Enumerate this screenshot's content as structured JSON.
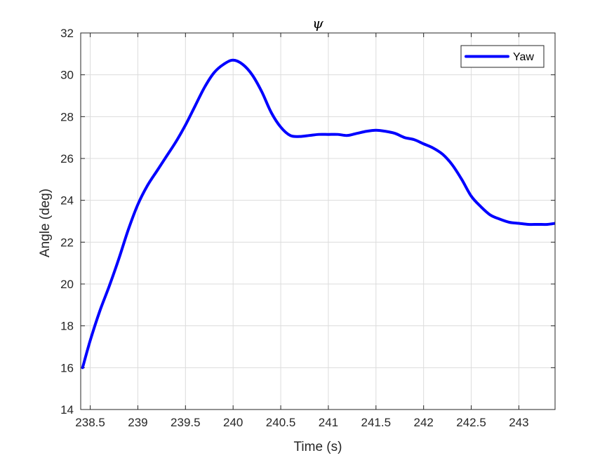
{
  "chart_data": {
    "type": "line",
    "title": "ψ",
    "xlabel": "Time (s)",
    "ylabel": "Angle (deg)",
    "xlim": [
      238.4,
      243.38
    ],
    "ylim": [
      14,
      32
    ],
    "xticks": [
      238.5,
      239,
      239.5,
      240,
      240.5,
      241,
      241.5,
      242,
      242.5,
      243
    ],
    "xtick_labels": [
      "238.5",
      "239",
      "239.5",
      "240",
      "240.5",
      "241",
      "241.5",
      "242",
      "242.5",
      "243"
    ],
    "yticks": [
      14,
      16,
      18,
      20,
      22,
      24,
      26,
      28,
      30,
      32
    ],
    "ytick_labels": [
      "14",
      "16",
      "18",
      "20",
      "22",
      "24",
      "26",
      "28",
      "30",
      "32"
    ],
    "grid": true,
    "legend_position": "top-right",
    "series": [
      {
        "name": "Yaw",
        "color": "#0000ff",
        "x": [
          238.42,
          238.5,
          238.6,
          238.7,
          238.8,
          238.9,
          239.0,
          239.1,
          239.2,
          239.3,
          239.4,
          239.5,
          239.6,
          239.7,
          239.8,
          239.9,
          240.0,
          240.1,
          240.2,
          240.3,
          240.4,
          240.5,
          240.6,
          240.7,
          240.8,
          240.9,
          241.0,
          241.1,
          241.2,
          241.3,
          241.4,
          241.5,
          241.6,
          241.7,
          241.8,
          241.9,
          242.0,
          242.1,
          242.2,
          242.3,
          242.4,
          242.5,
          242.6,
          242.7,
          242.8,
          242.9,
          243.0,
          243.1,
          243.2,
          243.3,
          243.38
        ],
        "y": [
          16.0,
          17.3,
          18.7,
          19.9,
          21.2,
          22.6,
          23.8,
          24.7,
          25.4,
          26.1,
          26.8,
          27.6,
          28.5,
          29.4,
          30.1,
          30.5,
          30.7,
          30.5,
          30.0,
          29.2,
          28.2,
          27.5,
          27.1,
          27.05,
          27.1,
          27.15,
          27.15,
          27.15,
          27.1,
          27.2,
          27.3,
          27.35,
          27.3,
          27.2,
          27.0,
          26.9,
          26.7,
          26.5,
          26.2,
          25.7,
          25.0,
          24.2,
          23.7,
          23.3,
          23.1,
          22.95,
          22.9,
          22.85,
          22.85,
          22.85,
          22.9
        ]
      }
    ]
  }
}
